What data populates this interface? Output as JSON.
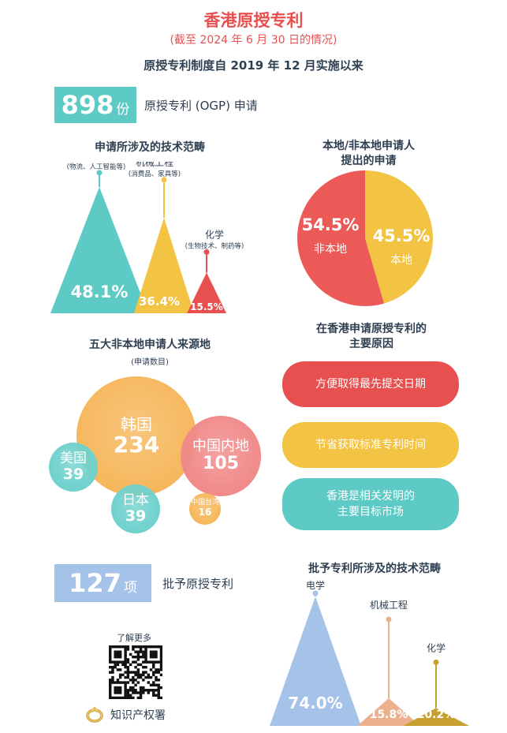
{
  "header": {
    "title": "香港原授专利",
    "subtitle": "(截至 2024 年 6 月 30 日的情况)",
    "since": "原授专利制度自 2019 年 12 月实施以来"
  },
  "applications": {
    "count": "898",
    "unit": "份",
    "caption": "原授专利 (OGP) 申请"
  },
  "grants": {
    "count": "127",
    "unit": "项",
    "caption": "批予原授专利"
  },
  "local_heading": [
    "本地/非本地申请人",
    "提出的申请"
  ],
  "reasons": {
    "heading": [
      "在香港申请原授专利的",
      "主要原因"
    ],
    "items": [
      {
        "text": [
          "方便取得最先提交日期"
        ],
        "color": "#e8504f"
      },
      {
        "text": [
          "节省获取标准专利时间"
        ],
        "color": "#f3c443"
      },
      {
        "text": [
          "香港是相关发明的",
          "主要目标市场"
        ],
        "color": "#5ecac6"
      }
    ]
  },
  "footer": {
    "learn_more": "了解更多",
    "org_name": "知识产权署"
  },
  "chart_data": [
    {
      "type": "triangle-bar",
      "title": "申请所涉及的技术范畴",
      "categories": [
        "电学",
        "机械工程",
        "化学"
      ],
      "category_notes": [
        "(物流、人工智能等)",
        "(消费品、家具等)",
        "(生物技术、制药等)"
      ],
      "values": [
        48.1,
        36.4,
        15.5
      ],
      "value_labels": [
        "48.1%",
        "36.4%",
        "15.5%"
      ],
      "colors": [
        "#5ecac6",
        "#f3c443",
        "#e8504f"
      ]
    },
    {
      "type": "pie",
      "title": "本地/非本地申请人提出的申请",
      "categories": [
        "非本地",
        "本地"
      ],
      "values": [
        54.5,
        45.5
      ],
      "value_labels": [
        "54.5%",
        "45.5%"
      ],
      "colors": [
        "#ec5a58",
        "#f3c443"
      ]
    },
    {
      "type": "bubble",
      "title": "五大非本地申请人来源地",
      "subtitle": "(申请数目)",
      "categories": [
        "韩国",
        "中国内地",
        "美国",
        "日本",
        "中国台湾"
      ],
      "values": [
        234,
        105,
        39,
        39,
        16
      ],
      "value_labels": [
        "234",
        "105",
        "39",
        "39",
        "16"
      ],
      "colors": [
        "#f6b75c",
        "#f08a89",
        "#6fd1cd",
        "#6fd1cd",
        "#f6b75c"
      ]
    },
    {
      "type": "triangle-bar",
      "title": "批予专利所涉及的技术范畴",
      "categories": [
        "电学",
        "机械工程",
        "化学"
      ],
      "values": [
        74.0,
        15.8,
        10.2
      ],
      "value_labels": [
        "74.0%",
        "15.8%",
        "10.2%"
      ],
      "colors": [
        "#a5c3e9",
        "#ecb08f",
        "#c8a032"
      ]
    }
  ]
}
